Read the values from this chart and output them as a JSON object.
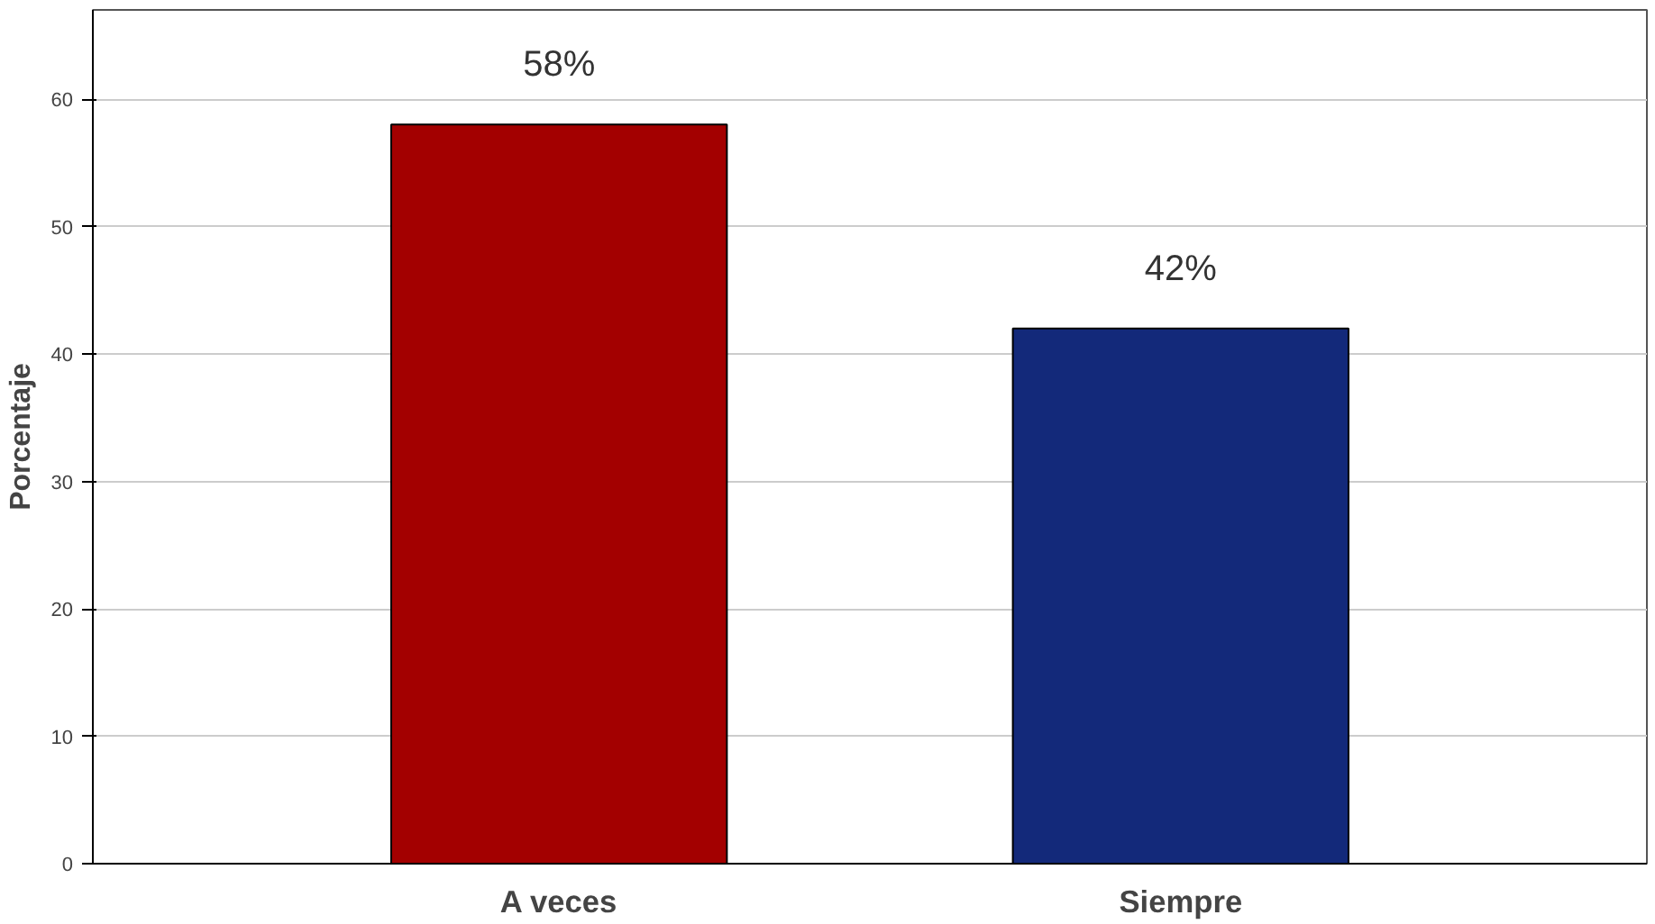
{
  "chart_data": {
    "type": "bar",
    "ylabel": "Porcentaje",
    "categories": [
      "A veces",
      "Siempre"
    ],
    "values": [
      58,
      42
    ],
    "colors": [
      "#a30000",
      "#13297a"
    ],
    "value_labels": [
      "58%",
      "42%"
    ],
    "ylim": [
      0,
      67
    ],
    "yticks": [
      0,
      10,
      20,
      30,
      40,
      50,
      60
    ],
    "grid": "y"
  }
}
